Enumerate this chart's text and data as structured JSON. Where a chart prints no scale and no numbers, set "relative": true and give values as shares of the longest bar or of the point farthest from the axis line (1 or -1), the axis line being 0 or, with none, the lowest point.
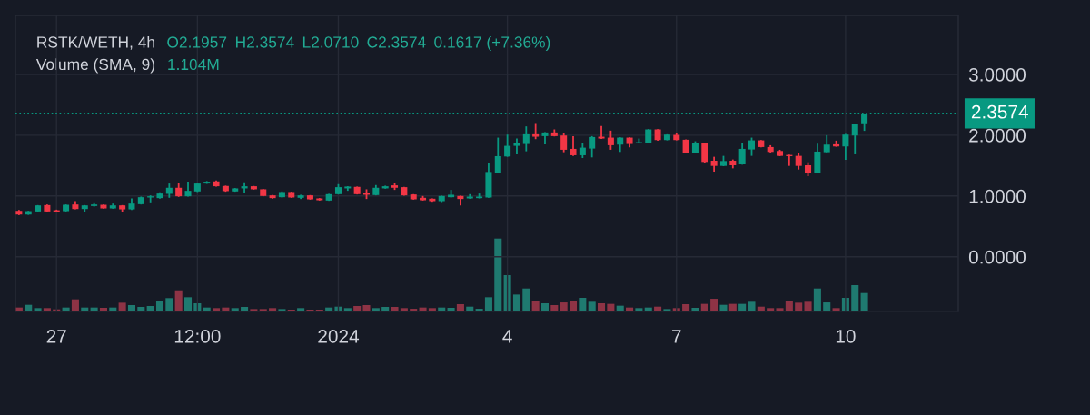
{
  "chart_data": [
    {
      "type": "candlestick",
      "title": "RSTK/WETH, 4h",
      "annotations": [
        "O2.1957",
        "H2.3574",
        "L2.0710",
        "C2.3574",
        "0.1617 (+7.36%)"
      ],
      "x": [
        "2023-12-26T08:00",
        "2023-12-26T12:00",
        "2023-12-26T16:00",
        "2023-12-26T20:00",
        "2023-12-27T00:00",
        "2023-12-27T04:00",
        "2023-12-27T08:00",
        "2023-12-27T12:00",
        "2023-12-27T16:00",
        "2023-12-27T20:00",
        "2023-12-28T00:00",
        "2023-12-28T04:00",
        "2023-12-28T08:00",
        "2023-12-28T12:00",
        "2023-12-28T16:00",
        "2023-12-28T20:00",
        "2023-12-29T00:00",
        "2023-12-29T04:00",
        "2023-12-29T08:00",
        "2023-12-29T12:00",
        "2023-12-29T16:00",
        "2023-12-29T20:00",
        "2023-12-30T00:00",
        "2023-12-30T04:00",
        "2023-12-30T08:00",
        "2023-12-30T12:00",
        "2023-12-30T16:00",
        "2023-12-30T20:00",
        "2023-12-31T00:00",
        "2023-12-31T04:00",
        "2023-12-31T08:00",
        "2023-12-31T12:00",
        "2023-12-31T16:00",
        "2023-12-31T20:00",
        "2024-01-01T00:00",
        "2024-01-01T04:00",
        "2024-01-01T08:00",
        "2024-01-01T12:00",
        "2024-01-01T16:00",
        "2024-01-01T20:00",
        "2024-01-02T00:00",
        "2024-01-02T04:00",
        "2024-01-02T08:00",
        "2024-01-02T12:00",
        "2024-01-02T16:00",
        "2024-01-02T20:00",
        "2024-01-03T00:00",
        "2024-01-03T04:00",
        "2024-01-03T08:00",
        "2024-01-03T12:00",
        "2024-01-03T16:00",
        "2024-01-03T20:00",
        "2024-01-04T00:00",
        "2024-01-04T04:00",
        "2024-01-04T08:00",
        "2024-01-04T12:00",
        "2024-01-04T16:00",
        "2024-01-04T20:00",
        "2024-01-05T00:00",
        "2024-01-05T04:00",
        "2024-01-05T08:00",
        "2024-01-05T12:00",
        "2024-01-05T16:00",
        "2024-01-05T20:00",
        "2024-01-06T00:00",
        "2024-01-06T04:00",
        "2024-01-06T08:00",
        "2024-01-06T12:00",
        "2024-01-06T16:00",
        "2024-01-06T20:00",
        "2024-01-07T00:00",
        "2024-01-07T04:00",
        "2024-01-07T08:00",
        "2024-01-07T12:00",
        "2024-01-07T16:00",
        "2024-01-07T20:00",
        "2024-01-08T00:00",
        "2024-01-08T04:00",
        "2024-01-08T08:00",
        "2024-01-08T12:00",
        "2024-01-08T16:00",
        "2024-01-08T20:00",
        "2024-01-09T00:00",
        "2024-01-09T04:00",
        "2024-01-09T08:00",
        "2024-01-09T12:00",
        "2024-01-09T16:00",
        "2024-01-09T20:00",
        "2024-01-10T00:00",
        "2024-01-10T04:00",
        "2024-01-10T08:00"
      ],
      "ohlc": [
        [
          0.755,
          0.77,
          0.685,
          0.695
        ],
        [
          0.695,
          0.755,
          0.69,
          0.75
        ],
        [
          0.745,
          0.85,
          0.74,
          0.845
        ],
        [
          0.85,
          0.86,
          0.735,
          0.745
        ],
        [
          0.765,
          0.775,
          0.73,
          0.735
        ],
        [
          0.75,
          0.86,
          0.745,
          0.855
        ],
        [
          0.86,
          0.915,
          0.78,
          0.785
        ],
        [
          0.785,
          0.85,
          0.735,
          0.845
        ],
        [
          0.835,
          0.895,
          0.825,
          0.86
        ],
        [
          0.855,
          0.86,
          0.79,
          0.795
        ],
        [
          0.795,
          0.875,
          0.79,
          0.845
        ],
        [
          0.845,
          0.85,
          0.735,
          0.78
        ],
        [
          0.78,
          0.96,
          0.77,
          0.875
        ],
        [
          0.865,
          0.99,
          0.86,
          0.98
        ],
        [
          0.975,
          1.01,
          0.895,
          0.995
        ],
        [
          0.965,
          1.06,
          0.955,
          1.04
        ],
        [
          1.035,
          1.205,
          0.97,
          1.135
        ],
        [
          1.135,
          1.22,
          0.985,
          0.995
        ],
        [
          0.995,
          1.235,
          0.99,
          1.085
        ],
        [
          1.075,
          1.215,
          1.065,
          1.205
        ],
        [
          1.205,
          1.245,
          1.2,
          1.235
        ],
        [
          1.24,
          1.255,
          1.155,
          1.16
        ],
        [
          1.165,
          1.17,
          1.07,
          1.08
        ],
        [
          1.075,
          1.13,
          1.07,
          1.125
        ],
        [
          1.125,
          1.225,
          1.05,
          1.16
        ],
        [
          1.16,
          1.165,
          1.105,
          1.11
        ],
        [
          1.11,
          1.115,
          0.995,
          1.0
        ],
        [
          1.01,
          1.015,
          0.955,
          0.965
        ],
        [
          0.98,
          1.075,
          0.975,
          1.065
        ],
        [
          1.065,
          1.07,
          0.97,
          0.975
        ],
        [
          0.97,
          1.02,
          0.95,
          1.01
        ],
        [
          1.01,
          1.015,
          0.94,
          0.945
        ],
        [
          0.96,
          0.965,
          0.925,
          0.93
        ],
        [
          0.925,
          1.035,
          0.92,
          1.03
        ],
        [
          1.03,
          1.195,
          1.025,
          1.145
        ],
        [
          1.125,
          1.16,
          1.085,
          1.155
        ],
        [
          1.15,
          1.155,
          1.025,
          1.03
        ],
        [
          1.045,
          1.11,
          0.95,
          1.02
        ],
        [
          1.015,
          1.18,
          1.01,
          1.135
        ],
        [
          1.125,
          1.17,
          1.12,
          1.16
        ],
        [
          1.175,
          1.22,
          1.1,
          1.135
        ],
        [
          1.145,
          1.15,
          1.005,
          1.01
        ],
        [
          1.025,
          1.03,
          0.94,
          0.945
        ],
        [
          0.97,
          1.0,
          0.925,
          0.93
        ],
        [
          0.955,
          0.96,
          0.905,
          0.915
        ],
        [
          0.915,
          1.005,
          0.9,
          1.0
        ],
        [
          0.98,
          1.1,
          0.975,
          1.02
        ],
        [
          1.0,
          1.005,
          0.845,
          0.95
        ],
        [
          0.96,
          1.03,
          0.955,
          0.99
        ],
        [
          0.965,
          1.04,
          0.96,
          0.99
        ],
        [
          0.975,
          1.545,
          0.97,
          1.395
        ],
        [
          1.38,
          1.96,
          1.375,
          1.655
        ],
        [
          1.65,
          2.01,
          1.645,
          1.825
        ],
        [
          1.825,
          1.945,
          1.685,
          1.865
        ],
        [
          1.855,
          2.145,
          1.735,
          2.015
        ],
        [
          2.015,
          2.2,
          1.935,
          1.975
        ],
        [
          1.985,
          2.05,
          1.85,
          2.045
        ],
        [
          2.045,
          2.095,
          1.98,
          1.985
        ],
        [
          1.995,
          2.035,
          1.72,
          1.76
        ],
        [
          1.775,
          1.985,
          1.66,
          1.67
        ],
        [
          1.67,
          1.875,
          1.625,
          1.795
        ],
        [
          1.78,
          1.985,
          1.635,
          1.97
        ],
        [
          1.975,
          2.15,
          1.94,
          1.945
        ],
        [
          1.96,
          2.075,
          1.76,
          1.835
        ],
        [
          1.845,
          1.965,
          1.725,
          1.96
        ],
        [
          1.96,
          1.965,
          1.8,
          1.855
        ],
        [
          1.87,
          1.945,
          1.865,
          1.885
        ],
        [
          1.875,
          2.1,
          1.87,
          2.095
        ],
        [
          2.095,
          2.1,
          1.91,
          1.92
        ],
        [
          1.92,
          2.015,
          1.915,
          2.01
        ],
        [
          2.005,
          2.03,
          1.915,
          1.92
        ],
        [
          1.925,
          1.93,
          1.7,
          1.71
        ],
        [
          1.71,
          1.9,
          1.705,
          1.865
        ],
        [
          1.865,
          1.87,
          1.545,
          1.56
        ],
        [
          1.58,
          1.645,
          1.4,
          1.495
        ],
        [
          1.495,
          1.66,
          1.49,
          1.575
        ],
        [
          1.58,
          1.6,
          1.455,
          1.505
        ],
        [
          1.52,
          1.875,
          1.515,
          1.775
        ],
        [
          1.765,
          1.96,
          1.66,
          1.915
        ],
        [
          1.915,
          1.92,
          1.8,
          1.805
        ],
        [
          1.805,
          1.835,
          1.715,
          1.725
        ],
        [
          1.74,
          1.76,
          1.655,
          1.66
        ],
        [
          1.675,
          1.68,
          1.495,
          1.655
        ],
        [
          1.66,
          1.71,
          1.435,
          1.495
        ],
        [
          1.505,
          1.555,
          1.325,
          1.385
        ],
        [
          1.38,
          1.86,
          1.375,
          1.73
        ],
        [
          1.72,
          2.0,
          1.715,
          1.845
        ],
        [
          1.85,
          1.91,
          1.81,
          1.815
        ],
        [
          1.815,
          2.02,
          1.595,
          2.01
        ],
        [
          1.995,
          2.185,
          1.685,
          2.18
        ],
        [
          2.1957,
          2.3574,
          2.071,
          2.3574
        ]
      ],
      "colors": [
        "#f23645",
        "#089981",
        "#089981",
        "#f23645",
        "#f23645",
        "#089981",
        "#f23645",
        "#089981",
        "#089981",
        "#f23645",
        "#089981",
        "#f23645",
        "#089981",
        "#089981",
        "#089981",
        "#089981",
        "#089981",
        "#f23645",
        "#089981",
        "#089981",
        "#089981",
        "#f23645",
        "#f23645",
        "#089981",
        "#089981",
        "#f23645",
        "#f23645",
        "#f23645",
        "#089981",
        "#f23645",
        "#089981",
        "#f23645",
        "#f23645",
        "#089981",
        "#089981",
        "#089981",
        "#f23645",
        "#f23645",
        "#089981",
        "#089981",
        "#f23645",
        "#f23645",
        "#f23645",
        "#f23645",
        "#f23645",
        "#089981",
        "#089981",
        "#f23645",
        "#089981",
        "#089981",
        "#089981",
        "#089981",
        "#089981",
        "#089981",
        "#089981",
        "#f23645",
        "#089981",
        "#f23645",
        "#f23645",
        "#f23645",
        "#089981",
        "#089981",
        "#f23645",
        "#f23645",
        "#089981",
        "#f23645",
        "#089981",
        "#089981",
        "#f23645",
        "#089981",
        "#f23645",
        "#f23645",
        "#089981",
        "#f23645",
        "#f23645",
        "#089981",
        "#f23645",
        "#089981",
        "#089981",
        "#f23645",
        "#f23645",
        "#f23645",
        "#f23645",
        "#f23645",
        "#f23645",
        "#089981",
        "#089981",
        "#f23645",
        "#089981",
        "#089981",
        "#089981"
      ],
      "xlim": [
        "2023-12-26T06:30",
        "2024-01-12T00:00"
      ],
      "xticks": [
        {
          "value": "2023-12-27",
          "label": "27"
        },
        {
          "value": "2023-12-29T12:00",
          "label": "12:00"
        },
        {
          "value": "2024-01-01",
          "label": "2024"
        },
        {
          "value": "2024-01-04",
          "label": "4"
        },
        {
          "value": "2024-01-07",
          "label": "7"
        },
        {
          "value": "2024-01-10",
          "label": "10"
        }
      ],
      "ylim": [
        -0.9,
        3.97
      ],
      "yticks": [
        {
          "value": 0,
          "label": "0.0000"
        },
        {
          "value": 1,
          "label": "1.0000"
        },
        {
          "value": 2,
          "label": "2.0000"
        },
        {
          "value": 3,
          "label": "3.0000"
        }
      ],
      "ref_lines": [
        {
          "axis": "y",
          "value": 2.3574,
          "label": "2.3574",
          "color": "#089981",
          "line_style": "dotted"
        }
      ],
      "grid": true
    },
    {
      "type": "bar",
      "title": "Volume (SMA, 9)",
      "annotations": [
        "1.104M"
      ],
      "relative": true,
      "xlim": [
        "2023-12-26T06:30",
        "2024-01-12T00:00"
      ],
      "x": [
        "2023-12-26T08:00",
        "2023-12-26T12:00",
        "2023-12-26T16:00",
        "2023-12-26T20:00",
        "2023-12-27T00:00",
        "2023-12-27T04:00",
        "2023-12-27T08:00",
        "2023-12-27T12:00",
        "2023-12-27T16:00",
        "2023-12-27T20:00",
        "2023-12-28T00:00",
        "2023-12-28T04:00",
        "2023-12-28T08:00",
        "2023-12-28T12:00",
        "2023-12-28T16:00",
        "2023-12-28T20:00",
        "2023-12-29T00:00",
        "2023-12-29T04:00",
        "2023-12-29T08:00",
        "2023-12-29T12:00",
        "2023-12-29T16:00",
        "2023-12-29T20:00",
        "2023-12-30T00:00",
        "2023-12-30T04:00",
        "2023-12-30T08:00",
        "2023-12-30T12:00",
        "2023-12-30T16:00",
        "2023-12-30T20:00",
        "2023-12-31T00:00",
        "2023-12-31T04:00",
        "2023-12-31T08:00",
        "2023-12-31T12:00",
        "2023-12-31T16:00",
        "2023-12-31T20:00",
        "2024-01-01T00:00",
        "2024-01-01T04:00",
        "2024-01-01T08:00",
        "2024-01-01T12:00",
        "2024-01-01T16:00",
        "2024-01-01T20:00",
        "2024-01-02T00:00",
        "2024-01-02T04:00",
        "2024-01-02T08:00",
        "2024-01-02T12:00",
        "2024-01-02T16:00",
        "2024-01-02T20:00",
        "2024-01-03T00:00",
        "2024-01-03T04:00",
        "2024-01-03T08:00",
        "2024-01-03T12:00",
        "2024-01-03T16:00",
        "2024-01-03T20:00",
        "2024-01-04T00:00",
        "2024-01-04T04:00",
        "2024-01-04T08:00",
        "2024-01-04T12:00",
        "2024-01-04T16:00",
        "2024-01-04T20:00",
        "2024-01-05T00:00",
        "2024-01-05T04:00",
        "2024-01-05T08:00",
        "2024-01-05T12:00",
        "2024-01-05T16:00",
        "2024-01-05T20:00",
        "2024-01-06T00:00",
        "2024-01-06T04:00",
        "2024-01-06T08:00",
        "2024-01-06T12:00",
        "2024-01-06T16:00",
        "2024-01-06T20:00",
        "2024-01-07T00:00",
        "2024-01-07T04:00",
        "2024-01-07T08:00",
        "2024-01-07T12:00",
        "2024-01-07T16:00",
        "2024-01-07T20:00",
        "2024-01-08T00:00",
        "2024-01-08T04:00",
        "2024-01-08T08:00",
        "2024-01-08T12:00",
        "2024-01-08T16:00",
        "2024-01-08T20:00",
        "2024-01-09T00:00",
        "2024-01-09T04:00",
        "2024-01-09T08:00",
        "2024-01-09T12:00",
        "2024-01-09T16:00",
        "2024-01-09T20:00",
        "2024-01-10T00:00",
        "2024-01-10T04:00",
        "2024-01-10T08:00"
      ],
      "values": [
        0.054,
        0.091,
        0.046,
        0.046,
        0.029,
        0.054,
        0.166,
        0.054,
        0.054,
        0.05,
        0.054,
        0.12,
        0.087,
        0.062,
        0.075,
        0.141,
        0.183,
        0.29,
        0.195,
        0.112,
        0.054,
        0.046,
        0.054,
        0.046,
        0.062,
        0.033,
        0.033,
        0.046,
        0.033,
        0.025,
        0.046,
        0.025,
        0.025,
        0.054,
        0.066,
        0.046,
        0.075,
        0.087,
        0.046,
        0.062,
        0.062,
        0.046,
        0.037,
        0.054,
        0.046,
        0.054,
        0.05,
        0.1,
        0.066,
        0.037,
        0.195,
        1,
        0.498,
        0.232,
        0.315,
        0.145,
        0.112,
        0.087,
        0.124,
        0.145,
        0.187,
        0.133,
        0.112,
        0.104,
        0.079,
        0.054,
        0.046,
        0.054,
        0.066,
        0.033,
        0.046,
        0.1,
        0.05,
        0.104,
        0.174,
        0.091,
        0.104,
        0.104,
        0.133,
        0.066,
        0.046,
        0.046,
        0.141,
        0.12,
        0.133,
        0.315,
        0.124,
        0.046,
        0.187,
        0.361,
        0.253
      ],
      "colors": [
        "#8e3345",
        "#1f7a70",
        "#1f7a70",
        "#8e3345",
        "#8e3345",
        "#1f7a70",
        "#8e3345",
        "#1f7a70",
        "#1f7a70",
        "#8e3345",
        "#1f7a70",
        "#8e3345",
        "#1f7a70",
        "#1f7a70",
        "#1f7a70",
        "#1f7a70",
        "#1f7a70",
        "#8e3345",
        "#1f7a70",
        "#1f7a70",
        "#1f7a70",
        "#8e3345",
        "#8e3345",
        "#1f7a70",
        "#1f7a70",
        "#8e3345",
        "#8e3345",
        "#8e3345",
        "#1f7a70",
        "#8e3345",
        "#1f7a70",
        "#8e3345",
        "#8e3345",
        "#1f7a70",
        "#1f7a70",
        "#1f7a70",
        "#8e3345",
        "#8e3345",
        "#1f7a70",
        "#1f7a70",
        "#8e3345",
        "#8e3345",
        "#8e3345",
        "#8e3345",
        "#8e3345",
        "#1f7a70",
        "#1f7a70",
        "#8e3345",
        "#1f7a70",
        "#1f7a70",
        "#1f7a70",
        "#1f7a70",
        "#1f7a70",
        "#1f7a70",
        "#1f7a70",
        "#8e3345",
        "#1f7a70",
        "#8e3345",
        "#8e3345",
        "#8e3345",
        "#1f7a70",
        "#1f7a70",
        "#8e3345",
        "#8e3345",
        "#1f7a70",
        "#8e3345",
        "#1f7a70",
        "#1f7a70",
        "#8e3345",
        "#1f7a70",
        "#8e3345",
        "#8e3345",
        "#1f7a70",
        "#8e3345",
        "#8e3345",
        "#1f7a70",
        "#8e3345",
        "#1f7a70",
        "#1f7a70",
        "#8e3345",
        "#8e3345",
        "#8e3345",
        "#8e3345",
        "#8e3345",
        "#8e3345",
        "#1f7a70",
        "#1f7a70",
        "#8e3345",
        "#1f7a70",
        "#1f7a70",
        "#1f7a70"
      ]
    }
  ]
}
